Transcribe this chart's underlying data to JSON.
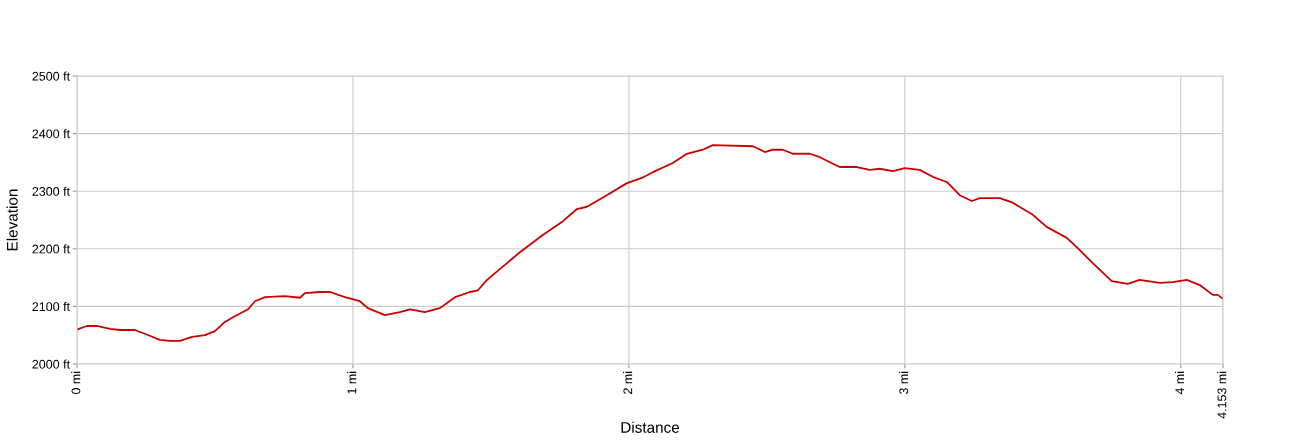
{
  "chart_data": {
    "type": "line",
    "xlabel": "Distance",
    "ylabel": "Elevation",
    "xlim": [
      0,
      4.153
    ],
    "ylim": [
      2000,
      2500
    ],
    "xticks": [
      {
        "value": 0,
        "label": "0 mi"
      },
      {
        "value": 1,
        "label": "1 mi"
      },
      {
        "value": 2,
        "label": "2 mi"
      },
      {
        "value": 3,
        "label": "3 mi"
      },
      {
        "value": 4,
        "label": "4 mi"
      },
      {
        "value": 4.153,
        "label": "4.153 mi"
      }
    ],
    "yticks": [
      {
        "value": 2000,
        "label": "2000 ft"
      },
      {
        "value": 2100,
        "label": "2100 ft"
      },
      {
        "value": 2200,
        "label": "2200 ft"
      },
      {
        "value": 2300,
        "label": "2300 ft"
      },
      {
        "value": 2400,
        "label": "2400 ft"
      },
      {
        "value": 2500,
        "label": "2500 ft"
      }
    ],
    "grid": true,
    "marker": "none",
    "line_style": "solid",
    "series": [
      {
        "color": "#cc0000",
        "x": [
          0,
          0.036,
          0.072,
          0.12,
          0.156,
          0.21,
          0.264,
          0.3,
          0.337,
          0.373,
          0.417,
          0.464,
          0.5,
          0.536,
          0.572,
          0.62,
          0.645,
          0.681,
          0.754,
          0.808,
          0.826,
          0.88,
          0.917,
          0.971,
          1.025,
          1.054,
          1.116,
          1.17,
          1.207,
          1.261,
          1.315,
          1.37,
          1.424,
          1.453,
          1.486,
          1.605,
          1.688,
          1.761,
          1.812,
          1.848,
          1.92,
          1.993,
          2.047,
          2.087,
          2.159,
          2.21,
          2.268,
          2.304,
          2.449,
          2.493,
          2.522,
          2.558,
          2.594,
          2.656,
          2.692,
          2.764,
          2.826,
          2.873,
          2.909,
          2.957,
          3.0,
          3.054,
          3.101,
          3.152,
          3.199,
          3.243,
          3.272,
          3.344,
          3.391,
          3.464,
          3.514,
          3.587,
          3.623,
          3.681,
          3.75,
          3.808,
          3.851,
          3.924,
          3.971,
          4.022,
          4.069,
          4.116,
          4.134,
          4.153
        ],
        "values": [
          2060,
          2066,
          2066,
          2061,
          2059,
          2059,
          2049,
          2042,
          2040,
          2040,
          2047,
          2050,
          2057,
          2073,
          2083,
          2095,
          2109,
          2116,
          2118,
          2115,
          2123,
          2125,
          2125,
          2116,
          2109,
          2097,
          2085,
          2090,
          2095,
          2090,
          2097,
          2116,
          2125,
          2128,
          2146,
          2194,
          2224,
          2248,
          2269,
          2273,
          2293,
          2314,
          2323,
          2333,
          2349,
          2365,
          2372,
          2380,
          2378,
          2368,
          2372,
          2372,
          2365,
          2365,
          2359,
          2342,
          2342,
          2337,
          2339,
          2335,
          2340,
          2337,
          2325,
          2316,
          2293,
          2283,
          2288,
          2288,
          2280,
          2259,
          2238,
          2219,
          2203,
          2175,
          2144,
          2139,
          2146,
          2141,
          2142,
          2146,
          2137,
          2120,
          2120,
          2113
        ]
      }
    ]
  }
}
